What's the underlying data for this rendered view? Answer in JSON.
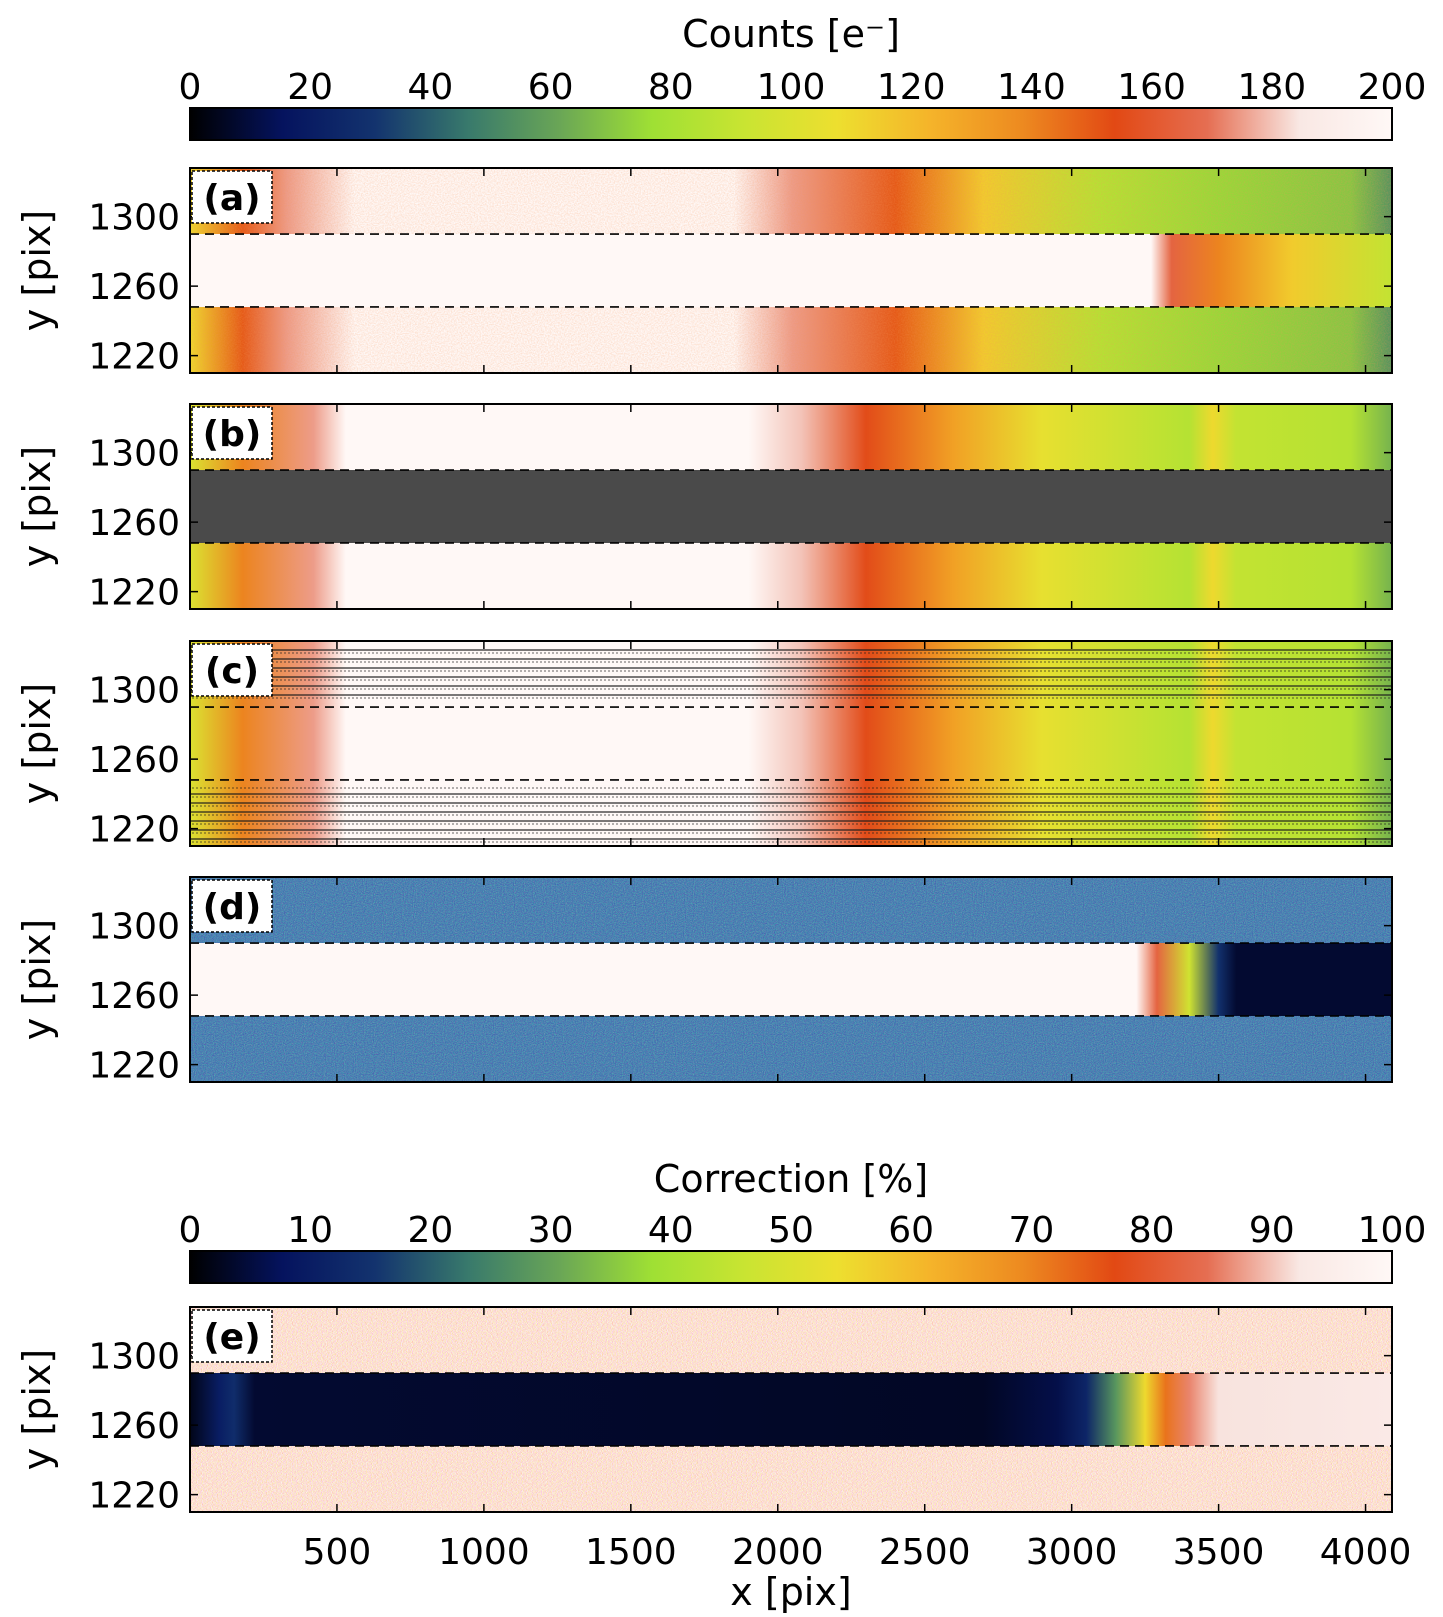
{
  "chart_data": {
    "type": "heatmap",
    "colorbars": [
      {
        "label": "Counts [e⁻]",
        "ticks": [
          "0",
          "20",
          "40",
          "60",
          "80",
          "100",
          "120",
          "140",
          "160",
          "180",
          "200"
        ],
        "range": [
          0,
          200
        ],
        "applies_to": [
          "a",
          "b",
          "c",
          "d"
        ]
      },
      {
        "label": "Correction [%]",
        "ticks": [
          "0",
          "10",
          "20",
          "30",
          "40",
          "50",
          "60",
          "70",
          "80",
          "90",
          "100"
        ],
        "range": [
          0,
          100
        ],
        "applies_to": [
          "e"
        ]
      }
    ],
    "colormap": [
      "#000000",
      "#05135e",
      "#13336e",
      "#38796c",
      "#6aa656",
      "#9fe034",
      "#c9e432",
      "#eddf2f",
      "#f5b42a",
      "#ed8a20",
      "#e24914",
      "#e56e52",
      "#f9e8e4",
      "#fff8f6"
    ],
    "panels": [
      {
        "id": "a",
        "label": "(a)"
      },
      {
        "id": "b",
        "label": "(b)"
      },
      {
        "id": "c",
        "label": "(c)"
      },
      {
        "id": "d",
        "label": "(d)"
      },
      {
        "id": "e",
        "label": "(e)"
      }
    ],
    "ylabel": "y [pix]",
    "yticks": [
      "1220",
      "1260",
      "1300"
    ],
    "yvalues": [
      1220,
      1260,
      1300
    ],
    "ylim": [
      1210,
      1328
    ],
    "xlabel": "x [pix]",
    "xticks": [
      "500",
      "1000",
      "1500",
      "2000",
      "2500",
      "3000",
      "3500",
      "4000"
    ],
    "xvalues": [
      500,
      1000,
      1500,
      2000,
      2500,
      3000,
      3500,
      4000
    ],
    "xlim": [
      0,
      4090
    ],
    "trail_rows": [
      1248,
      1290
    ],
    "profiles": {
      "a_outer": [
        [
          0,
          110
        ],
        [
          180,
          150
        ],
        [
          330,
          175
        ],
        [
          560,
          200
        ],
        [
          1850,
          200
        ],
        [
          2050,
          175
        ],
        [
          2400,
          150
        ],
        [
          2700,
          115
        ],
        [
          3100,
          85
        ],
        [
          3500,
          75
        ],
        [
          3950,
          70
        ],
        [
          4090,
          55
        ]
      ],
      "a_trail": [
        [
          0,
          200
        ],
        [
          3270,
          200
        ],
        [
          3340,
          165
        ],
        [
          3500,
          140
        ],
        [
          3750,
          115
        ],
        [
          4090,
          90
        ]
      ],
      "b_model": [
        [
          0,
          100
        ],
        [
          180,
          140
        ],
        [
          420,
          175
        ],
        [
          530,
          200
        ],
        [
          1900,
          200
        ],
        [
          2080,
          180
        ],
        [
          2300,
          155
        ],
        [
          2600,
          130
        ],
        [
          2900,
          105
        ],
        [
          3400,
          85
        ],
        [
          3480,
          110
        ],
        [
          3560,
          90
        ],
        [
          3950,
          85
        ],
        [
          4090,
          65
        ]
      ],
      "d_trail": [
        [
          0,
          200
        ],
        [
          3220,
          200
        ],
        [
          3290,
          165
        ],
        [
          3400,
          95
        ],
        [
          3500,
          30
        ],
        [
          3560,
          8
        ],
        [
          4090,
          8
        ]
      ],
      "e_trail": [
        [
          0,
          2
        ],
        [
          100,
          10
        ],
        [
          150,
          14
        ],
        [
          220,
          4
        ],
        [
          2700,
          3
        ],
        [
          2950,
          6
        ],
        [
          3050,
          12
        ],
        [
          3150,
          28
        ],
        [
          3250,
          55
        ],
        [
          3320,
          72
        ],
        [
          3400,
          86
        ],
        [
          3500,
          92
        ],
        [
          4090,
          93
        ]
      ],
      "e_noise_level": 94
    }
  }
}
